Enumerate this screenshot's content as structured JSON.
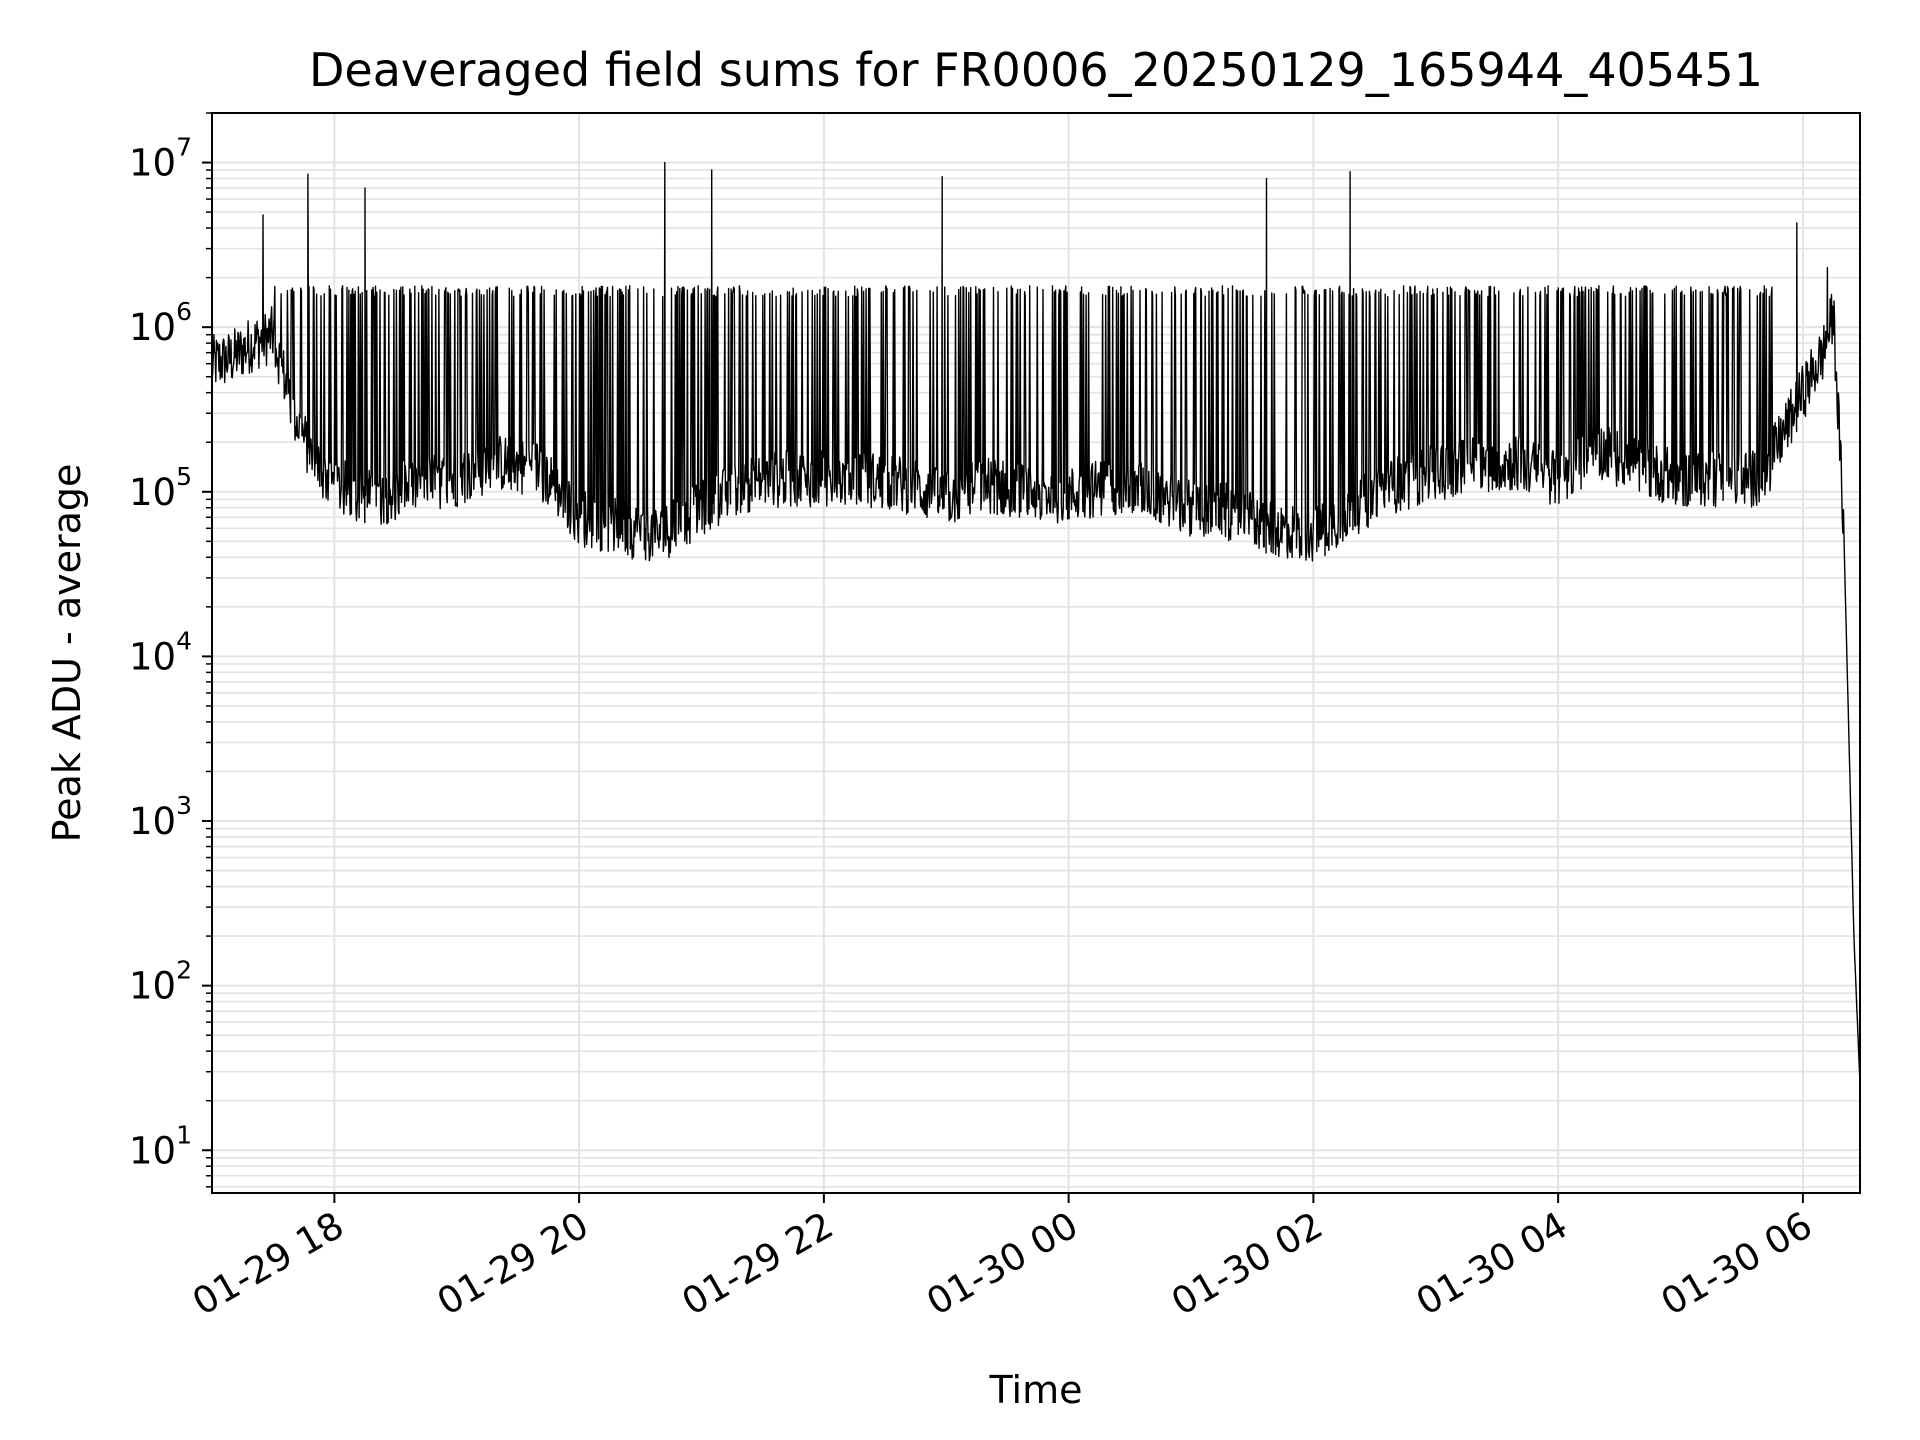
{
  "chart_data": {
    "type": "line",
    "title": "Deaveraged field sums for FR0006_20250129_165944_405451",
    "xlabel": "Time",
    "ylabel": "Peak ADU - average",
    "yscale": "log",
    "ylim": [
      5.5,
      20000000
    ],
    "xlim": [
      "2025-01-29 17:00",
      "2025-01-30 06:28"
    ],
    "grid": true,
    "line_color": "#000000",
    "grid_color": "#e3e3e3",
    "x_ticks": [
      "2025-01-29 18:00",
      "2025-01-29 20:00",
      "2025-01-29 22:00",
      "2025-01-30 00:00",
      "2025-01-30 02:00",
      "2025-01-30 04:00",
      "2025-01-30 06:00"
    ],
    "x_tick_labels": [
      "01-29 18",
      "01-29 20",
      "01-29 22",
      "01-30 00",
      "01-30 02",
      "01-30 04",
      "01-30 06"
    ],
    "y_ticks": [
      10,
      100,
      1000,
      10000,
      100000,
      1000000,
      10000000
    ],
    "y_tick_labels": [
      {
        "base": "10",
        "exp": "1"
      },
      {
        "base": "10",
        "exp": "2"
      },
      {
        "base": "10",
        "exp": "3"
      },
      {
        "base": "10",
        "exp": "4"
      },
      {
        "base": "10",
        "exp": "5"
      },
      {
        "base": "10",
        "exp": "6"
      },
      {
        "base": "10",
        "exp": "7"
      }
    ],
    "series": [
      {
        "baseline": {
          "x": [
            "2025-01-29 17:00",
            "2025-01-29 17:10",
            "2025-01-29 17:20",
            "2025-01-29 17:30",
            "2025-01-29 17:40",
            "2025-01-29 17:50",
            "2025-01-29 18:00",
            "2025-01-29 18:20",
            "2025-01-29 18:40",
            "2025-01-29 19:00",
            "2025-01-29 19:20",
            "2025-01-29 19:40",
            "2025-01-29 20:00",
            "2025-01-29 20:20",
            "2025-01-29 20:40",
            "2025-01-29 21:00",
            "2025-01-29 21:20",
            "2025-01-29 21:40",
            "2025-01-29 22:00",
            "2025-01-29 22:20",
            "2025-01-29 22:40",
            "2025-01-29 23:00",
            "2025-01-29 23:20",
            "2025-01-29 23:40",
            "2025-01-30 00:00",
            "2025-01-30 00:20",
            "2025-01-30 00:40",
            "2025-01-30 01:00",
            "2025-01-30 01:20",
            "2025-01-30 01:40",
            "2025-01-30 02:00",
            "2025-01-30 02:20",
            "2025-01-30 02:40",
            "2025-01-30 03:00",
            "2025-01-30 03:20",
            "2025-01-30 03:40",
            "2025-01-30 04:00",
            "2025-01-30 04:20",
            "2025-01-30 04:40",
            "2025-01-30 05:00",
            "2025-01-30 05:20",
            "2025-01-30 05:40",
            "2025-01-30 06:00",
            "2025-01-30 06:10",
            "2025-01-30 06:15",
            "2025-01-30 06:20",
            "2025-01-30 06:25",
            "2025-01-30 06:28"
          ],
          "y": [
            600000,
            650000,
            800000,
            900000,
            300000,
            150000,
            110000,
            90000,
            110000,
            120000,
            150000,
            140000,
            70000,
            60000,
            55000,
            80000,
            110000,
            120000,
            120000,
            120000,
            110000,
            90000,
            110000,
            100000,
            95000,
            110000,
            100000,
            80000,
            75000,
            60000,
            55000,
            80000,
            110000,
            130000,
            150000,
            150000,
            120000,
            180000,
            140000,
            120000,
            120000,
            120000,
            400000,
            700000,
            1200000,
            60000,
            200,
            25
          ]
        },
        "spikes": {
          "x": [
            "2025-01-29 17:25",
            "2025-01-29 17:47",
            "2025-01-29 18:15",
            "2025-01-29 20:42",
            "2025-01-29 21:05",
            "2025-01-29 22:58",
            "2025-01-30 01:37",
            "2025-01-30 02:18",
            "2025-01-30 05:57",
            "2025-01-30 06:12"
          ],
          "y": [
            4800000,
            8500000,
            7000000,
            10000000,
            9000000,
            8200000,
            8000000,
            8800000,
            4300000,
            2300000
          ]
        },
        "dense_band": {
          "x_range": [
            "2025-01-29 17:30",
            "2025-01-30 05:45"
          ],
          "peak_level": 1700000
        }
      }
    ]
  }
}
